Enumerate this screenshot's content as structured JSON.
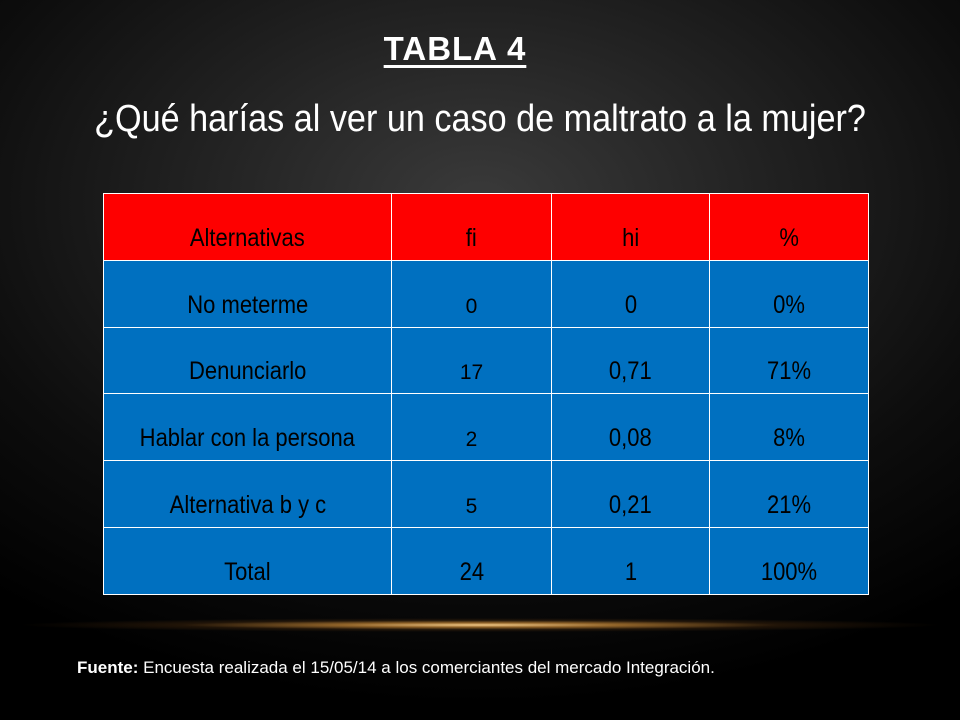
{
  "slide": {
    "label": "TABLA 4",
    "question": "¿Qué harías al ver un caso de maltrato a la mujer?"
  },
  "table": {
    "headers": [
      "Alternativas",
      "fi",
      "hi",
      "%"
    ],
    "rows": [
      {
        "alternativa": "No meterme",
        "fi": "0",
        "hi": "0",
        "pct": "0%"
      },
      {
        "alternativa": "Denunciarlo",
        "fi": "17",
        "hi": "0,71",
        "pct": "71%"
      },
      {
        "alternativa": "Hablar con la persona",
        "fi": "2",
        "hi": "0,08",
        "pct": "8%"
      },
      {
        "alternativa": "Alternativa b y c",
        "fi": "5",
        "hi": "0,21",
        "pct": "21%"
      },
      {
        "alternativa": "Total",
        "fi": "24",
        "hi": "1",
        "pct": "100%"
      }
    ]
  },
  "footer": {
    "source_label": "Fuente:",
    "source_text": " Encuesta realizada el 15/05/14 a los comerciantes del mercado Integración."
  },
  "colors": {
    "header_bg": "#fe0000",
    "cell_bg": "#0070c0"
  }
}
